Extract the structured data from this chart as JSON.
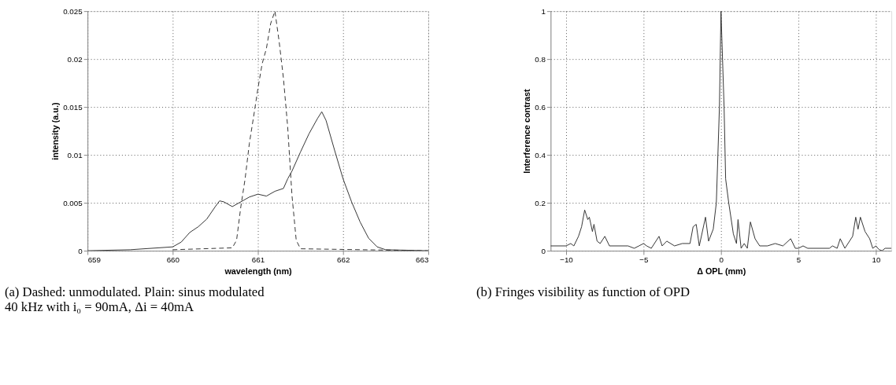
{
  "chart_data": [
    {
      "type": "line",
      "xlabel": "wavelength (nm)",
      "ylabel": "intensity (a.u.)",
      "xlim": [
        659,
        663
      ],
      "ylim": [
        0,
        0.025
      ],
      "xticks": [
        659,
        660,
        661,
        662,
        663
      ],
      "yticks": [
        0,
        0.005,
        0.01,
        0.015,
        0.02,
        0.025
      ],
      "grid": true,
      "annotations": [
        "(a) Dashed: unmodulated. Plain: sinus modulated 40 kHz with i₀ = 90mA, Δi = 40mA"
      ],
      "series": [
        {
          "color": "#333333",
          "line_style": "solid",
          "x": [
            659,
            659.5,
            660,
            660.1,
            660.2,
            660.3,
            660.4,
            660.5,
            660.55,
            660.6,
            660.7,
            660.8,
            660.9,
            661.0,
            661.1,
            661.2,
            661.3,
            661.35,
            661.4,
            661.5,
            661.6,
            661.7,
            661.75,
            661.8,
            661.9,
            662.0,
            662.1,
            662.2,
            662.3,
            662.4,
            662.5,
            663
          ],
          "values": [
            0,
            0.0001,
            0.0004,
            0.0009,
            0.0019,
            0.0025,
            0.0033,
            0.0046,
            0.0052,
            0.0051,
            0.0046,
            0.0051,
            0.0056,
            0.0059,
            0.0057,
            0.0062,
            0.0065,
            0.0075,
            0.0083,
            0.0103,
            0.0122,
            0.0138,
            0.0145,
            0.0136,
            0.0105,
            0.0075,
            0.0051,
            0.003,
            0.0013,
            0.0004,
            0.0001,
            0
          ]
        },
        {
          "color": "#333333",
          "line_style": "dashed",
          "x": [
            660,
            660.7,
            660.75,
            660.8,
            660.85,
            660.9,
            660.95,
            661.0,
            661.05,
            661.1,
            661.15,
            661.2,
            661.25,
            661.3,
            661.35,
            661.4,
            661.45,
            661.5,
            663
          ],
          "values": [
            0.0001,
            0.0003,
            0.0011,
            0.0046,
            0.0075,
            0.0112,
            0.014,
            0.0169,
            0.0195,
            0.0211,
            0.0237,
            0.025,
            0.0218,
            0.018,
            0.0129,
            0.0058,
            0.0011,
            0.0002,
            0
          ]
        }
      ]
    },
    {
      "type": "line",
      "xlabel": "Δ OPL (mm)",
      "ylabel": "Interference contrast",
      "xlim": [
        -11,
        11
      ],
      "ylim": [
        0,
        1
      ],
      "xticks": [
        -10,
        -5,
        0,
        5,
        10
      ],
      "yticks": [
        0,
        0.2,
        0.4,
        0.6,
        0.8,
        1
      ],
      "grid": true,
      "annotations": [
        "(b) Fringes visibility as function of OPD"
      ],
      "series": [
        {
          "color": "#333333",
          "line_style": "solid",
          "x": [
            -11,
            -10,
            -9.7,
            -9.5,
            -9.2,
            -9,
            -8.8,
            -8.6,
            -8.5,
            -8.3,
            -8.2,
            -8,
            -7.8,
            -7.5,
            -7.2,
            -6,
            -5.6,
            -5.3,
            -5,
            -4.8,
            -4.5,
            -4,
            -3.8,
            -3.5,
            -3,
            -2.5,
            -2,
            -1.8,
            -1.6,
            -1.4,
            -1,
            -0.8,
            -0.5,
            -0.3,
            -0.1,
            0,
            0.2,
            0.3,
            0.5,
            0.8,
            1,
            1.1,
            1.3,
            1.5,
            1.7,
            1.9,
            2.2,
            2.5,
            3,
            3.5,
            4,
            4.5,
            4.8,
            5,
            5.3,
            5.6,
            7,
            7.2,
            7.5,
            7.7,
            8,
            8.5,
            8.7,
            8.85,
            9,
            9.3,
            9.6,
            9.8,
            10,
            10.2,
            10.4,
            10.6,
            11
          ],
          "values": [
            0.02,
            0.02,
            0.03,
            0.02,
            0.06,
            0.1,
            0.17,
            0.13,
            0.14,
            0.08,
            0.11,
            0.04,
            0.03,
            0.06,
            0.02,
            0.02,
            0.01,
            0.02,
            0.03,
            0.02,
            0.01,
            0.06,
            0.02,
            0.04,
            0.02,
            0.03,
            0.03,
            0.1,
            0.11,
            0.02,
            0.14,
            0.04,
            0.09,
            0.2,
            0.6,
            1,
            0.6,
            0.3,
            0.2,
            0.07,
            0.03,
            0.13,
            0.01,
            0.03,
            0.01,
            0.12,
            0.05,
            0.02,
            0.02,
            0.03,
            0.02,
            0.05,
            0.01,
            0.01,
            0.02,
            0.01,
            0.01,
            0.02,
            0.01,
            0.05,
            0.01,
            0.06,
            0.14,
            0.09,
            0.14,
            0.08,
            0.05,
            0.01,
            0.02,
            0.005,
            0,
            0.01,
            0.01
          ]
        }
      ]
    }
  ]
}
